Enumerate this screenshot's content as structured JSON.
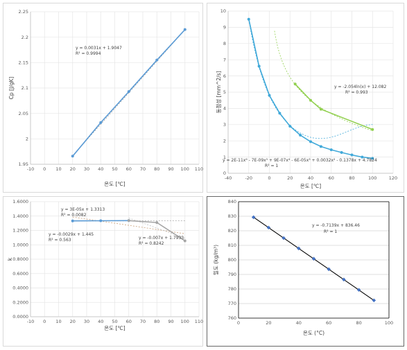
{
  "chart_data": [
    {
      "type": "line",
      "xlabel": "온도 [℃]",
      "ylabel": "Cp  [J/gK]",
      "xlim": [
        -10,
        110
      ],
      "ylim": [
        1.95,
        2.25
      ],
      "xticks": [
        "-10",
        "0",
        "10",
        "20",
        "30",
        "40",
        "50",
        "60",
        "70",
        "80",
        "90",
        "100",
        "110"
      ],
      "yticks": [
        "1.95",
        "2",
        "2.05",
        "2.1",
        "2.15",
        "2.2",
        "2.25"
      ],
      "series": [
        {
          "x": [
            20,
            40,
            60,
            80,
            100
          ],
          "y": [
            1.966,
            2.032,
            2.093,
            2.155,
            2.215
          ],
          "color": "#5b9bd5"
        }
      ],
      "equation": "y = 0.0031x + 1.9047",
      "r2": "R² = 0.9994"
    },
    {
      "type": "line",
      "xlabel": "온도 [℃]",
      "ylabel": "동점성 [mm^2/s]",
      "xlim": [
        -40,
        120
      ],
      "ylim": [
        0,
        10
      ],
      "xticks": [
        "-40",
        "-20",
        "0",
        "20",
        "40",
        "60",
        "80",
        "100",
        "120"
      ],
      "yticks": [
        "0",
        "1",
        "2",
        "3",
        "4",
        "5",
        "6",
        "7",
        "8",
        "9",
        "10"
      ],
      "series": [
        {
          "x": [
            -20,
            -10,
            0,
            10,
            20,
            30,
            40,
            50,
            60,
            70,
            80,
            90,
            100
          ],
          "y": [
            9.5,
            6.6,
            4.8,
            3.7,
            2.9,
            2.35,
            1.95,
            1.65,
            1.45,
            1.28,
            1.13,
            1.0,
            0.92
          ],
          "color": "#41a9d9"
        },
        {
          "x": [
            25,
            40,
            50,
            100
          ],
          "y": [
            5.5,
            4.5,
            3.95,
            2.7
          ],
          "color": "#92d050"
        }
      ],
      "equation_1": "y = -2.054ln(x) + 12.082",
      "r2_1": "R² = 0.993",
      "equation_2": "y = 2E-11x⁶ - 7E-09x⁵ + 9E-07x⁴ - 6E-05x³ + 0.0032x² - 0.1378x + 4.7824",
      "r2_2": "R² = 1"
    },
    {
      "type": "line",
      "xlabel": "온도 [℃]",
      "ylabel": "k",
      "xlim": [
        -10,
        110
      ],
      "ylim": [
        0,
        1.6
      ],
      "xticks": [
        "-10",
        "0",
        "10",
        "20",
        "30",
        "40",
        "50",
        "60",
        "70",
        "80",
        "90",
        "100",
        "110"
      ],
      "yticks": [
        "0.0000",
        "0.2000",
        "0.4000",
        "0.6000",
        "0.8000",
        "1.0000",
        "1.2000",
        "1.4000",
        "1.6000"
      ],
      "series": [
        {
          "x": [
            20,
            40,
            60
          ],
          "y": [
            1.333,
            1.335,
            1.337
          ],
          "color": "#5b9bd5"
        },
        {
          "x": [
            60,
            80,
            100
          ],
          "y": [
            1.337,
            1.31,
            1.055
          ],
          "color": "#a5a5a5"
        }
      ],
      "equation_1": "y = 3E-05x + 1.3313",
      "r2_1": "R² = 0.0082",
      "equation_2": "y = -0.0029x + 1.445",
      "r2_2": "R² = 0.563",
      "equation_3": "y = -0.007x + 1.7933",
      "r2_3": "R² = 0.8242"
    },
    {
      "type": "scatter",
      "xlabel": "온도 (°C)",
      "ylabel": "밀도 (kg/m³)",
      "xlim": [
        0,
        100
      ],
      "ylim": [
        760,
        840
      ],
      "xticks": [
        "0",
        "20",
        "40",
        "60",
        "80",
        "100"
      ],
      "yticks": [
        "760",
        "770",
        "780",
        "790",
        "800",
        "810",
        "820",
        "830",
        "840"
      ],
      "series": [
        {
          "x": [
            10,
            20,
            30,
            40,
            50,
            60,
            70,
            80,
            90
          ],
          "y": [
            829.3,
            822.2,
            815.0,
            807.9,
            800.8,
            793.6,
            786.5,
            779.4,
            772.2
          ],
          "color": "#4472c4"
        }
      ],
      "equation": "y = -0.7139x + 836.46",
      "r2": "R² = 1"
    }
  ]
}
